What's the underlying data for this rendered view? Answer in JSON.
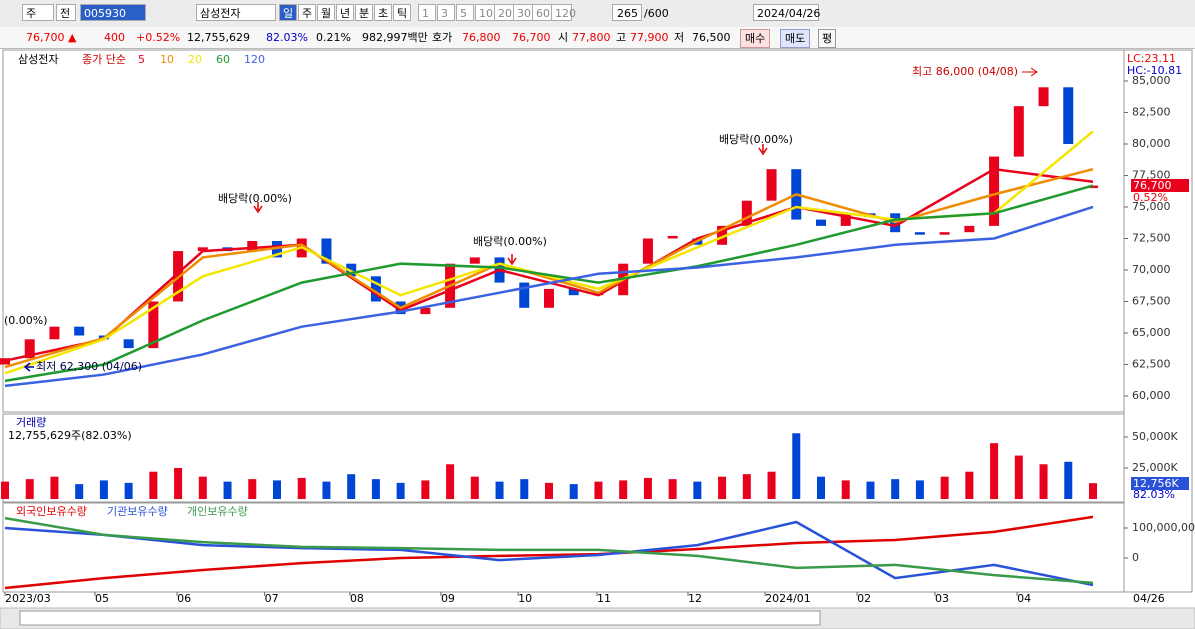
{
  "toolbar": {
    "market": "주",
    "mode": "전",
    "code": "005930",
    "name": "삼성전자",
    "periods": [
      "일",
      "주",
      "월",
      "년",
      "분",
      "초",
      "틱"
    ],
    "units": [
      "1",
      "3",
      "5",
      "10",
      "20",
      "30",
      "60",
      "120"
    ],
    "count": "265",
    "max": "/600",
    "date": "2024/04/26"
  },
  "quote_bar": {
    "price": "76,700",
    "arrow": "▲",
    "change": "400",
    "rate": "+0.52%",
    "volume": "12,755,629",
    "volume_rate": "82.03%",
    "turnover": "0.21%",
    "amount": "982,997백만",
    "bid_label": "호가",
    "ask": "76,800",
    "bid": "76,700",
    "open_label": "시",
    "open": "77,800",
    "high_label": "고",
    "high": "77,900",
    "low_label": "저",
    "low": "76,500",
    "buy": "매수",
    "sell": "매도",
    "avg": "평"
  },
  "chart_data": [
    {
      "type": "candlestick",
      "title": "삼성전자",
      "legend_prefix": "종가 단순",
      "up_color": "#e8001c",
      "down_color": "#0046d5",
      "x": [
        0,
        1,
        2,
        3,
        4,
        5,
        6,
        7,
        8,
        9,
        10,
        11,
        12,
        13,
        14,
        15,
        16,
        17,
        18,
        19,
        20,
        21,
        22,
        23,
        24,
        25,
        26,
        27,
        28,
        29,
        30,
        31,
        32,
        33,
        34,
        35,
        36,
        37,
        38,
        39,
        40,
        41,
        42,
        43,
        44
      ],
      "open": [
        62500,
        63000,
        64500,
        65500,
        64800,
        64500,
        63800,
        67500,
        71500,
        71800,
        71500,
        72300,
        71000,
        72500,
        70500,
        69500,
        67500,
        66500,
        67000,
        70500,
        71000,
        69000,
        67000,
        68500,
        68000,
        68000,
        70500,
        72500,
        72500,
        72000,
        73500,
        75500,
        78000,
        74000,
        73500,
        74500,
        74500,
        73000,
        72800,
        73000,
        73500,
        79000,
        83000,
        84500,
        76500
      ],
      "close": [
        63000,
        64500,
        65500,
        64800,
        64500,
        63800,
        67500,
        71500,
        71800,
        71500,
        72300,
        71000,
        72500,
        70500,
        69500,
        67500,
        66500,
        67000,
        70500,
        71000,
        69000,
        67000,
        68500,
        68000,
        68200,
        70500,
        72500,
        72700,
        72000,
        73500,
        75500,
        78000,
        74000,
        73500,
        74500,
        74300,
        73000,
        72800,
        73000,
        73500,
        79000,
        83000,
        84500,
        80000,
        76700
      ],
      "series": [
        {
          "name": "5",
          "color": "#e8001c",
          "x": [
            0,
            4,
            8,
            12,
            16,
            20,
            24,
            28,
            32,
            36,
            40,
            44
          ],
          "values": [
            62800,
            64500,
            71500,
            72000,
            66800,
            70000,
            68000,
            72500,
            75000,
            73500,
            78000,
            77000
          ]
        },
        {
          "name": "10",
          "color": "#f08c00",
          "x": [
            0,
            4,
            8,
            12,
            16,
            20,
            24,
            28,
            32,
            36,
            40,
            44
          ],
          "values": [
            62300,
            64600,
            71000,
            72000,
            67000,
            70500,
            68200,
            72300,
            76000,
            73800,
            76000,
            78000
          ]
        },
        {
          "name": "20",
          "color": "#f5e600",
          "x": [
            0,
            4,
            8,
            12,
            16,
            20,
            24,
            28,
            32,
            36,
            40,
            44
          ],
          "values": [
            61800,
            64500,
            69500,
            71800,
            68000,
            70500,
            68500,
            71800,
            75000,
            74000,
            74500,
            81000
          ]
        },
        {
          "name": "60",
          "color": "#1f9a2e",
          "x": [
            0,
            4,
            8,
            12,
            16,
            20,
            24,
            28,
            32,
            36,
            40,
            44
          ],
          "values": [
            61200,
            62500,
            66000,
            69000,
            70500,
            70200,
            69000,
            70300,
            72000,
            74000,
            74500,
            76700
          ]
        },
        {
          "name": "120",
          "color": "#3b62e0",
          "x": [
            0,
            4,
            8,
            12,
            16,
            20,
            24,
            28,
            32,
            36,
            40,
            44
          ],
          "values": [
            60800,
            61700,
            63300,
            65500,
            66700,
            68200,
            69700,
            70200,
            71000,
            72000,
            72500,
            75000
          ]
        }
      ],
      "xlim": [
        0,
        44
      ],
      "ylim": [
        58730,
        87300
      ],
      "yticks": [
        {
          "value": 60000,
          "label": "60,000"
        },
        {
          "value": 62500,
          "label": "62,500"
        },
        {
          "value": 65000,
          "label": "65,000"
        },
        {
          "value": 67500,
          "label": "67,500"
        },
        {
          "value": 70000,
          "label": "70,000"
        },
        {
          "value": 72500,
          "label": "72,500"
        },
        {
          "value": 75000,
          "label": "75,000"
        },
        {
          "value": 77500,
          "label": "77,500"
        },
        {
          "value": 80000,
          "label": "80,000"
        },
        {
          "value": 82500,
          "label": "82,500"
        },
        {
          "value": 85000,
          "label": "85,000"
        }
      ],
      "annotations": [
        "최고 86,000 (04/08)",
        "최저 62,300 (04/06)",
        "배당락(0.00%)",
        "배당락(0.00%)",
        "배당락(0.00%)",
        "(0.00%)"
      ],
      "lc": "LC:23.11",
      "hc": "HC:-10.81",
      "last_label": "76,700",
      "last_rate": "0.52%"
    },
    {
      "type": "bar",
      "title": "거래량",
      "subtitle": "12,755,629주(82.03%)",
      "ylim": [
        -2420,
        66900
      ],
      "yticks": [
        {
          "value": 25000,
          "label": "25,000K"
        },
        {
          "value": 50000,
          "label": "50,000K"
        }
      ],
      "values": [
        14000,
        16000,
        18000,
        12000,
        15000,
        13000,
        22000,
        25000,
        18000,
        14000,
        16000,
        15000,
        17000,
        14000,
        20000,
        16000,
        13000,
        15000,
        28000,
        18000,
        14000,
        16000,
        13000,
        12000,
        14000,
        15000,
        17000,
        16000,
        14000,
        18000,
        20000,
        22000,
        53000,
        18000,
        15000,
        14000,
        16000,
        15000,
        18000,
        22000,
        45000,
        35000,
        28000,
        30000,
        12756
      ],
      "last_label": "12,756K",
      "last_rate": "82.03%"
    },
    {
      "type": "line",
      "ylim": [
        -113300000,
        176700000
      ],
      "yticks": [
        0,
        {
          "value": 100000000,
          "label": "100,000,00"
        }
      ],
      "xticks": [
        {
          "value": 0,
          "label": "2023/03"
        },
        {
          "value": 3.64,
          "label": "05"
        },
        {
          "value": 6.96,
          "label": "06"
        },
        {
          "value": 10.5,
          "label": "07"
        },
        {
          "value": 13.95,
          "label": "08"
        },
        {
          "value": 17.63,
          "label": "09"
        },
        {
          "value": 20.75,
          "label": "10"
        },
        {
          "value": 23.94,
          "label": "11"
        },
        {
          "value": 27.62,
          "label": "12"
        },
        {
          "value": 30.74,
          "label": "2024/01"
        },
        {
          "value": 34.46,
          "label": "02"
        },
        {
          "value": 37.61,
          "label": "03"
        },
        {
          "value": 40.93,
          "label": "04"
        }
      ],
      "current_date": "04/26",
      "series": [
        {
          "name": "외국인보유수량",
          "color": "#e00000",
          "x": [
            0,
            4,
            8,
            12,
            16,
            20,
            24,
            28,
            32,
            36,
            40,
            44
          ],
          "values": [
            -100000000,
            -67000000,
            -40000000,
            -17000000,
            0,
            7000000,
            13000000,
            30000000,
            50000000,
            60000000,
            87000000,
            137000000
          ]
        },
        {
          "name": "기관보유수량",
          "color": "#2a52d8",
          "x": [
            0,
            4,
            8,
            12,
            16,
            20,
            24,
            28,
            32,
            36,
            40,
            44
          ],
          "values": [
            100000000,
            77000000,
            43000000,
            33000000,
            27000000,
            -7000000,
            10000000,
            43000000,
            120000000,
            -67000000,
            -23000000,
            -90000000
          ]
        },
        {
          "name": "개인보유수량",
          "color": "#3a9a4a",
          "x": [
            0,
            4,
            8,
            12,
            16,
            20,
            24,
            28,
            32,
            36,
            40,
            44
          ],
          "values": [
            133000000,
            77000000,
            53000000,
            37000000,
            33000000,
            27000000,
            27000000,
            7000000,
            -33000000,
            -23000000,
            -57000000,
            -83000000
          ]
        }
      ]
    }
  ]
}
